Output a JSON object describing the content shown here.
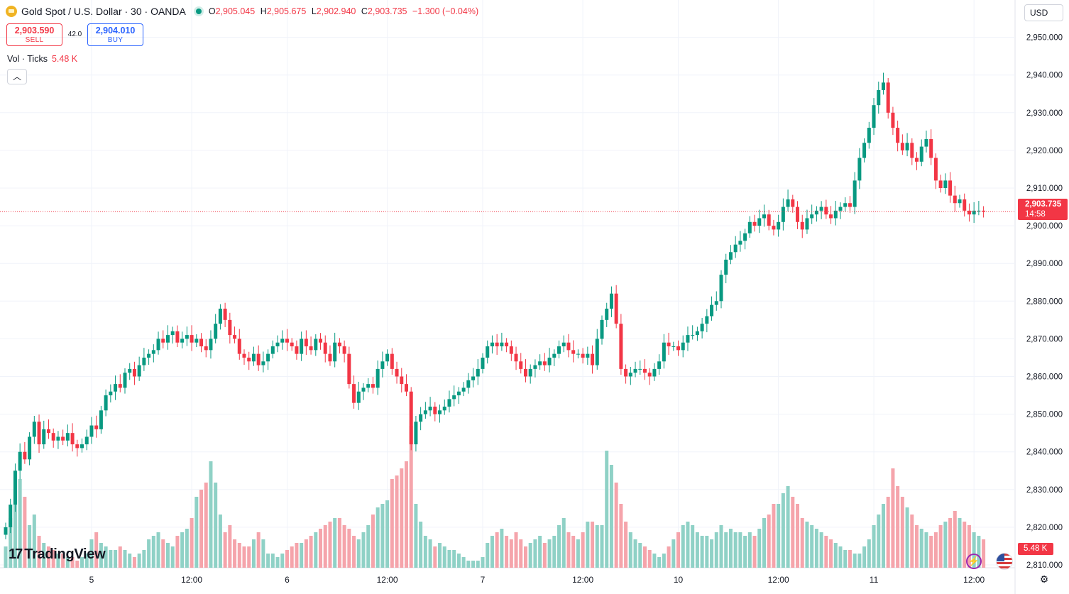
{
  "header": {
    "symbol": "Gold Spot / U.S. Dollar · 30 · OANDA",
    "ohlc": [
      {
        "k": "O",
        "v": "2,905.045"
      },
      {
        "k": "H",
        "v": "2,905.675"
      },
      {
        "k": "L",
        "v": "2,902.940"
      },
      {
        "k": "C",
        "v": "2,903.735"
      }
    ],
    "change": "−1.300 (−0.04%)"
  },
  "trade": {
    "sell_price": "2,903.590",
    "sell_label": "SELL",
    "spread": "42.0",
    "buy_price": "2,904.010",
    "buy_label": "BUY"
  },
  "volume_indicator": {
    "label": "Vol · Ticks",
    "value": "5.48 K"
  },
  "currency": "USD",
  "price_tag": {
    "price": "2,903.735",
    "countdown": "14:58"
  },
  "volume_tag": "5.48 K",
  "brand": "TradingView",
  "colors": {
    "up": "#089981",
    "down": "#f23645",
    "vol_up": "#8fd1c6",
    "vol_down": "#f5a4ab",
    "grid": "#f0f3fa"
  },
  "chart_data": {
    "type": "candlestick",
    "title": "Gold Spot / U.S. Dollar · 30 · OANDA",
    "y_axis": {
      "min": 2805,
      "max": 2955,
      "ticks": [
        2810,
        2820,
        2830,
        2840,
        2850,
        2860,
        2870,
        2880,
        2890,
        2900,
        2910,
        2920,
        2930,
        2940,
        2950
      ],
      "position": "right"
    },
    "x_axis_labels": [
      {
        "index": 18,
        "label": "5"
      },
      {
        "index": 39,
        "label": "12:00"
      },
      {
        "index": 59,
        "label": "6"
      },
      {
        "index": 80,
        "label": "12:00"
      },
      {
        "index": 100,
        "label": "7"
      },
      {
        "index": 121,
        "label": "12:00"
      },
      {
        "index": 141,
        "label": "10"
      },
      {
        "index": 162,
        "label": "12:00"
      },
      {
        "index": 182,
        "label": "11"
      },
      {
        "index": 203,
        "label": "12:00"
      }
    ],
    "last_close": 2903.735,
    "closes": [
      2820,
      2826,
      2835,
      2840,
      2838,
      2844,
      2848,
      2842,
      2846,
      2845,
      2843,
      2844,
      2843,
      2845,
      2842,
      2841,
      2842,
      2844,
      2847,
      2846,
      2851,
      2855,
      2856,
      2858,
      2857,
      2861,
      2862,
      2860,
      2863,
      2865,
      2866,
      2867,
      2870,
      2869,
      2871,
      2872,
      2869,
      2870,
      2871,
      2869,
      2870,
      2868,
      2867,
      2870,
      2874,
      2878,
      2875,
      2871,
      2870,
      2866,
      2865,
      2864,
      2866,
      2863,
      2864,
      2866,
      2868,
      2869,
      2870,
      2869,
      2868,
      2866,
      2870,
      2868,
      2867,
      2870,
      2869,
      2866,
      2864,
      2869,
      2868,
      2866,
      2858,
      2853,
      2856,
      2857,
      2858,
      2857,
      2862,
      2864,
      2866,
      2862,
      2860,
      2858,
      2856,
      2842,
      2848,
      2850,
      2851,
      2852,
      2850,
      2851,
      2852,
      2854,
      2855,
      2856,
      2857,
      2859,
      2860,
      2862,
      2865,
      2868,
      2869,
      2868,
      2869,
      2868,
      2866,
      2864,
      2862,
      2860,
      2862,
      2863,
      2864,
      2863,
      2865,
      2866,
      2868,
      2869,
      2867,
      2866,
      2866,
      2865,
      2866,
      2863,
      2870,
      2875,
      2878,
      2882,
      2874,
      2862,
      2860,
      2861,
      2862,
      2862,
      2861,
      2860,
      2862,
      2864,
      2869,
      2868,
      2868,
      2867,
      2869,
      2871,
      2871,
      2872,
      2874,
      2876,
      2879,
      2880,
      2887,
      2891,
      2893,
      2895,
      2896,
      2898,
      2901,
      2900,
      2902,
      2903,
      2900,
      2899,
      2901,
      2905,
      2907,
      2905,
      2901,
      2899,
      2902,
      2903,
      2904,
      2905,
      2903,
      2902,
      2904,
      2905,
      2906,
      2905,
      2912,
      2918,
      2922,
      2926,
      2932,
      2936,
      2938,
      2930,
      2926,
      2922,
      2920,
      2922,
      2918,
      2917,
      2921,
      2923,
      2918,
      2912,
      2910,
      2912,
      2908,
      2906,
      2907,
      2904,
      2903,
      2904,
      2904,
      2903.735
    ],
    "volumes": [
      6,
      14,
      22,
      25,
      20,
      12,
      15,
      9,
      7,
      6,
      5,
      4,
      4,
      3,
      3,
      2,
      3,
      4,
      8,
      10,
      7,
      6,
      5,
      5,
      6,
      5,
      4,
      3,
      4,
      5,
      8,
      9,
      10,
      8,
      7,
      6,
      9,
      10,
      11,
      14,
      20,
      22,
      24,
      30,
      24,
      15,
      10,
      12,
      8,
      7,
      6,
      6,
      8,
      10,
      8,
      4,
      4,
      3,
      4,
      5,
      6,
      7,
      7,
      8,
      9,
      10,
      11,
      12,
      13,
      14,
      14,
      12,
      11,
      9,
      8,
      10,
      12,
      15,
      17,
      18,
      19,
      25,
      26,
      28,
      30,
      40,
      18,
      13,
      9,
      8,
      6,
      7,
      6,
      5,
      5,
      4,
      3,
      2,
      2,
      2,
      3,
      7,
      9,
      10,
      11,
      9,
      8,
      10,
      8,
      6,
      7,
      8,
      9,
      7,
      8,
      9,
      12,
      14,
      10,
      9,
      8,
      10,
      13,
      13,
      12,
      12,
      33,
      29,
      24,
      18,
      13,
      10,
      8,
      7,
      6,
      5,
      4,
      3,
      4,
      6,
      8,
      10,
      12,
      13,
      12,
      10,
      9,
      9,
      8,
      10,
      12,
      10,
      11,
      10,
      10,
      9,
      10,
      9,
      11,
      14,
      15,
      18,
      18,
      21,
      23,
      20,
      18,
      14,
      13,
      12,
      11,
      10,
      9,
      8,
      7,
      6,
      5,
      5,
      4,
      4,
      6,
      8,
      12,
      15,
      18,
      20,
      28,
      23,
      20,
      17,
      15,
      12,
      11,
      10,
      9,
      10,
      12,
      13,
      14,
      16,
      14,
      13,
      12,
      10,
      9,
      8,
      5.48
    ]
  }
}
